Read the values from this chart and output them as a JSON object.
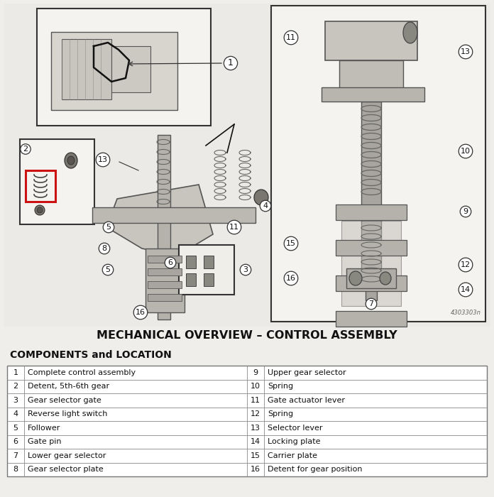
{
  "title": "MECHANICAL OVERVIEW – CONTROL ASSEMBLY",
  "subtitle": "COMPONENTS and LOCATION",
  "page_bg": "#f0eeeb",
  "diagram_bg": "#eceae6",
  "box_bg": "#f8f7f4",
  "ref_code": "4303303n",
  "components_left": [
    [
      1,
      "Complete control assembly"
    ],
    [
      2,
      "Detent, 5th-6th gear"
    ],
    [
      3,
      "Gear selector gate"
    ],
    [
      4,
      "Reverse light switch"
    ],
    [
      5,
      "Follower"
    ],
    [
      6,
      "Gate pin"
    ],
    [
      7,
      "Lower gear selector"
    ],
    [
      8,
      "Gear selector plate"
    ]
  ],
  "components_right": [
    [
      9,
      "Upper gear selector"
    ],
    [
      10,
      "Spring"
    ],
    [
      11,
      "Gate actuator lever"
    ],
    [
      12,
      "Spring"
    ],
    [
      13,
      "Selector lever"
    ],
    [
      14,
      "Locking plate"
    ],
    [
      15,
      "Carrier plate"
    ],
    [
      16,
      "Detent for gear position"
    ]
  ]
}
